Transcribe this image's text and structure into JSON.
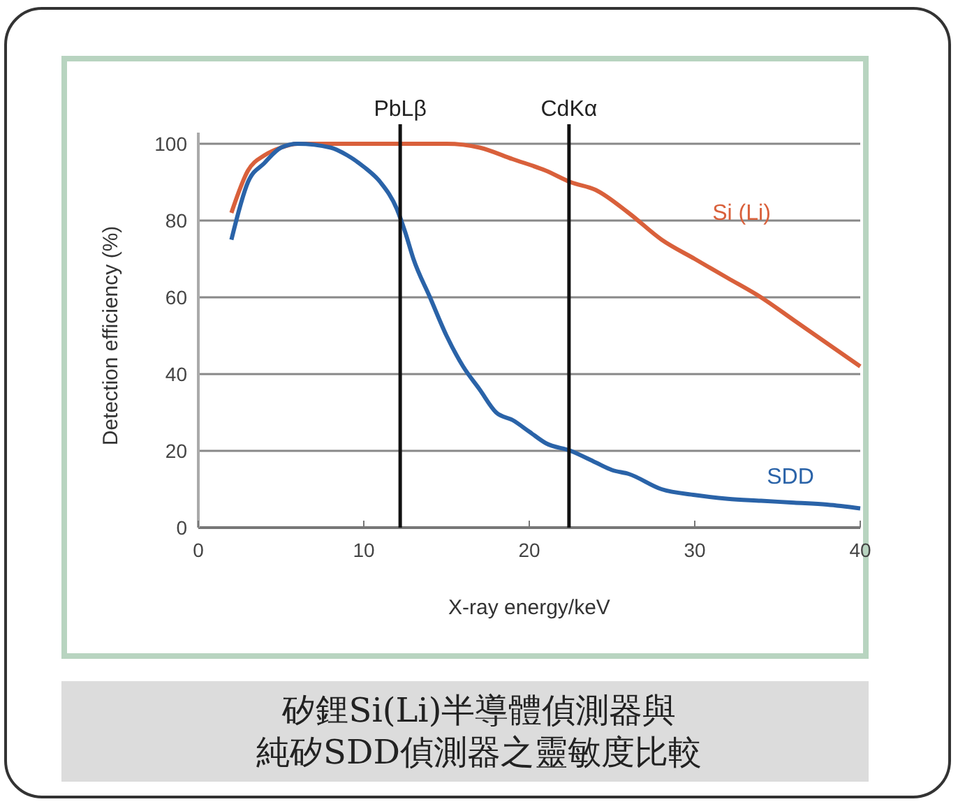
{
  "chart_data": {
    "type": "line",
    "title": "矽鋰Si(Li)半導體偵測器與純矽SDD偵測器之靈敏度比較",
    "xlabel": "X-ray energy/keV",
    "ylabel": "Detection efficiency (%)",
    "xlim": [
      0,
      40
    ],
    "xticks": [
      0,
      10,
      20,
      30,
      40
    ],
    "ylim": [
      0,
      100
    ],
    "yticks": [
      0,
      20,
      40,
      60,
      80,
      100
    ],
    "grid": "y",
    "marker": "none",
    "line_style": "solid",
    "ref_lines": [
      {
        "axis": "x",
        "value": 12.2,
        "label": "PbLβ",
        "color": "#111111"
      },
      {
        "axis": "x",
        "value": 22.4,
        "label": "CdKα",
        "color": "#111111"
      }
    ],
    "series": [
      {
        "name": "Si (Li)",
        "color": "#d9603b",
        "x": [
          2,
          3,
          4,
          5,
          6,
          8,
          10,
          12,
          15,
          17,
          19,
          21,
          22.5,
          24,
          26,
          28,
          30,
          32,
          34,
          36,
          38,
          40
        ],
        "values": [
          82,
          93,
          97,
          99,
          100,
          100,
          100,
          100,
          100,
          99,
          96,
          93,
          90,
          88,
          82,
          75,
          70,
          65,
          60,
          54,
          48,
          42
        ]
      },
      {
        "name": "SDD",
        "color": "#2a63a8",
        "x": [
          2,
          3,
          4,
          5,
          6,
          8,
          9,
          10,
          11,
          12,
          12.5,
          13,
          14,
          15,
          16,
          17,
          18,
          19,
          20,
          21,
          22.5,
          24,
          25,
          26,
          28,
          30,
          32,
          34,
          36,
          38,
          40
        ],
        "values": [
          75,
          90,
          95,
          99,
          100,
          99,
          97,
          94,
          90,
          83,
          77,
          70,
          60,
          50,
          42,
          36,
          30,
          28,
          25,
          22,
          20,
          17,
          15,
          14,
          10,
          8.5,
          7.5,
          7,
          6.5,
          6,
          5
        ]
      }
    ]
  }
}
